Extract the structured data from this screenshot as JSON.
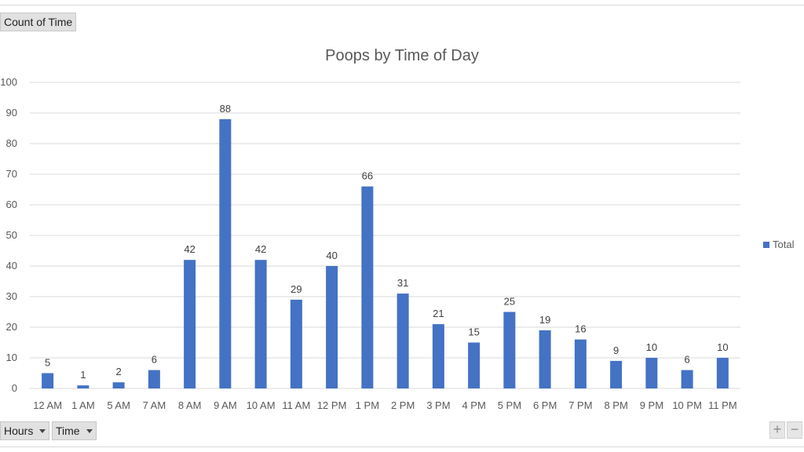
{
  "pivot": {
    "value_field": "Count of Time",
    "row_fields": [
      "Hours",
      "Time"
    ]
  },
  "chart_data": {
    "type": "bar",
    "title": "Poops by Time of Day",
    "categories": [
      "12 AM",
      "1 AM",
      "5 AM",
      "7 AM",
      "8 AM",
      "9 AM",
      "10 AM",
      "11 AM",
      "12 PM",
      "1 PM",
      "2 PM",
      "3 PM",
      "4 PM",
      "5 PM",
      "6 PM",
      "7 PM",
      "8 PM",
      "9 PM",
      "10 PM",
      "11 PM"
    ],
    "series": [
      {
        "name": "Total",
        "values": [
          5,
          1,
          2,
          6,
          42,
          88,
          42,
          29,
          40,
          66,
          31,
          21,
          15,
          25,
          19,
          16,
          9,
          10,
          6,
          10
        ]
      }
    ],
    "ylim": [
      0,
      100
    ],
    "yticks": [
      0,
      10,
      20,
      30,
      40,
      50,
      60,
      70,
      80,
      90,
      100
    ],
    "grid": true,
    "data_labels": true,
    "legend": "right",
    "colors": {
      "bar": "#4472c4",
      "grid": "#d9d9d9",
      "text": "#595959"
    }
  }
}
